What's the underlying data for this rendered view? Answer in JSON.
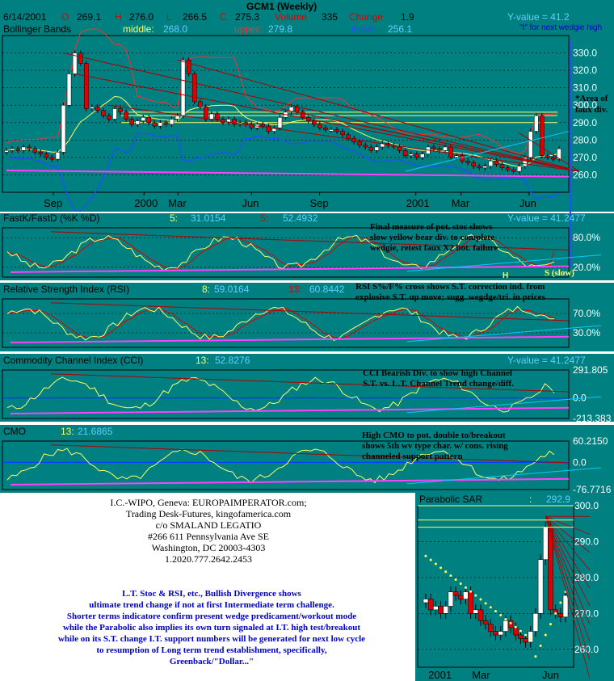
{
  "header": {
    "title": "GCM1 (Weekly)",
    "date": "6/14/2001",
    "o_label": "O",
    "o_value": "269.1",
    "h_label": "H",
    "h_value": "276.0",
    "l_label": "L",
    "l_value": "266.5",
    "c_label": "C",
    "c_value": "275.3",
    "volume_label": "Volume",
    "volume_value": "335",
    "change_label": "Change",
    "change_value": "1.9",
    "y_value": "Y-value = 41.2",
    "next_wedgie": "\"t\" for next wedgie high"
  },
  "colors": {
    "background": "#008080",
    "up_candle": "#ffffff",
    "down_candle": "#e00000",
    "middle_band": "#ffff66",
    "upper_band": "#ff3030",
    "lower_band": "#2050ff",
    "fast_line": "#ffff66",
    "slow_line": "#e00000",
    "trend_purple": "#ff40ff",
    "trend_red": "#b00000",
    "trend_blue": "#0040ff",
    "trend_cyan": "#00ccff"
  },
  "panels": {
    "price": {
      "name": "Bollinger Bands",
      "middle_label": "middle:",
      "middle_value": "268.0",
      "upper_label": "upper:",
      "upper_value": "279.8",
      "lower_label": "lower:",
      "lower_value": "256.1",
      "annotation": "*Area of\nfaux div."
    },
    "stoch": {
      "name": "FastK/FastD (%K %D)",
      "k_period": "5:",
      "k_value": "31.0154",
      "d_period": "5:",
      "d_value": "52.4932",
      "y_value": "Y-value = 41.2477",
      "annotation": "Final measure of pot. stoc shows\nslow yellow bear div. to complete\nwedgie, retest faux X2 bot. failure",
      "slow_label": "S (slow)",
      "h_label": "H"
    },
    "rsi": {
      "name": "Relative Strength Index (RSI)",
      "p1": "8:",
      "v1": "59.0164",
      "p2": "13:",
      "v2": "60.8442",
      "annotation": "RSI S%/F% cross shows S.T. correction ind. from\nexplosive S.T. up move; sugg. wegdge/tri. in prices"
    },
    "cci": {
      "name": "Commodity Channel Index (CCI)",
      "period": "13:",
      "value": "52.8276",
      "y_value": "Y-value = 41.2477",
      "annotation": "CCI Bearish Div. to show high Channel\nS.T. vs. L.T. Channel Trend change/diff."
    },
    "cmo": {
      "name": "CMO",
      "period": "13:",
      "value": "21.6865",
      "annotation": "High CMO to pot. double to/breakout\nshows 5th wv type char. w/ cons. rising\nchanneled support pattern"
    },
    "sar": {
      "name": "Parabolic SAR",
      "period": ":",
      "value": "292.9"
    }
  },
  "contact": [
    "I.C.-WIPO, Geneva: EUROPAIMPERATOR.com;",
    "Trading Desk-Futures, kingofamerica.com",
    "c/o SMALAND LEGATIO",
    "#266 611 Pennsylvania Ave SE",
    "Washington, DC 20003-4303",
    "1.2020.777.2642.2453"
  ],
  "commentary": [
    "L.T. Stoc & RSI, etc., Bullish Divergence shows",
    "ultimate trend change if not at first Intermediate term challenge.",
    "Shorter terms indicatore confirm present wedge predicament/workout mode",
    "while the Parabolic also implies its own turn signaled at I.T. high test/breakout",
    "while on its S.T. change I.T. support numbers will be generated for next low cycle",
    "to resumption of Long term trend establishment, specifically,",
    "Greenback/\"Dollar...\""
  ],
  "chart_data": [
    {
      "type": "candlestick",
      "title": "GCM1 (Weekly)",
      "series_name": "Bollinger Bands",
      "x_ticks": [
        "Sep",
        "2000",
        "Mar",
        "Jun",
        "Sep",
        "2001",
        "Mar",
        "Jun"
      ],
      "ylim": [
        250,
        340
      ],
      "y_ticks": [
        330,
        320,
        310,
        300,
        290,
        280,
        270,
        260
      ],
      "y_tick_labels": [
        "330.0",
        "320.0",
        "310.0",
        "300.0",
        "290.0",
        "280.0",
        "270.0",
        "260.0"
      ],
      "close": [
        274,
        275,
        274,
        276,
        275,
        273,
        272,
        270,
        269,
        273,
        300,
        318,
        330,
        324,
        298,
        299,
        297,
        294,
        292,
        298,
        296,
        292,
        289,
        291,
        293,
        290,
        288,
        290,
        289,
        292,
        294,
        326,
        318,
        302,
        299,
        292,
        295,
        292,
        290,
        292,
        289,
        290,
        289,
        287,
        289,
        288,
        285,
        287,
        293,
        296,
        299,
        296,
        293,
        291,
        289,
        287,
        286,
        286,
        285,
        283,
        281,
        279,
        277,
        276,
        274,
        276,
        278,
        277,
        276,
        274,
        271,
        272,
        270,
        272,
        276,
        275,
        274,
        276,
        270,
        271,
        268,
        267,
        265,
        264,
        265,
        268,
        266,
        264,
        263,
        262,
        265,
        270,
        285,
        294,
        271,
        270,
        269,
        275
      ],
      "middle_value": 268.0,
      "upper_value": 279.8,
      "lower_value": 256.1
    },
    {
      "type": "line",
      "series_name": "FastK/FastD (%K %D)",
      "ylim": [
        0,
        100
      ],
      "y_tick_labels": [
        "80.0%",
        "20.0%"
      ],
      "series": [
        {
          "name": "5:",
          "last": 31.0154
        },
        {
          "name": "5:",
          "last": 52.4932
        }
      ]
    },
    {
      "type": "line",
      "series_name": "Relative Strength Index (RSI)",
      "ylim": [
        0,
        100
      ],
      "y_tick_labels": [
        "70.0%",
        "30.0%"
      ],
      "series": [
        {
          "name": "8:",
          "last": 59.0164
        },
        {
          "name": "13:",
          "last": 60.8442
        }
      ]
    },
    {
      "type": "line",
      "series_name": "Commodity Channel Index (CCI)",
      "ylim": [
        -213.383,
        291.805
      ],
      "y_tick_labels": [
        "291.805",
        "0.0",
        "-213.383"
      ],
      "series": [
        {
          "name": "13:",
          "last": 52.8276
        }
      ]
    },
    {
      "type": "line",
      "series_name": "CMO",
      "ylim": [
        -76.7716,
        60.215
      ],
      "y_tick_labels": [
        "60.2150",
        "0.0",
        "-76.7716"
      ],
      "series": [
        {
          "name": "13:",
          "last": 21.6865
        }
      ]
    },
    {
      "type": "candlestick",
      "series_name": "Parabolic SAR",
      "x_ticks": [
        "2001",
        "Mar",
        "Jun"
      ],
      "ylim": [
        255,
        300
      ],
      "y_tick_labels": [
        "300.0",
        "290.0",
        "280.0",
        "270.0",
        "260.0"
      ],
      "close": [
        274,
        271,
        272,
        270,
        272,
        276,
        275,
        274,
        276,
        270,
        271,
        268,
        267,
        265,
        264,
        265,
        268,
        266,
        264,
        263,
        262,
        265,
        270,
        285,
        294,
        271,
        270,
        269,
        275
      ],
      "sar_value": 292.9
    }
  ]
}
